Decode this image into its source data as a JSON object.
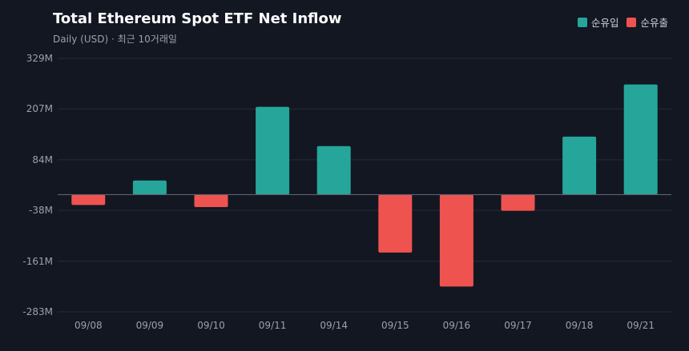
{
  "title": "Total Ethereum Spot ETF Net Inflow",
  "subtitle": "Daily (USD) · 최근 10거래일",
  "legend": [
    {
      "label": "순유입",
      "color": "#26a69a"
    },
    {
      "label": "순유출",
      "color": "#ef5350"
    }
  ],
  "chart_data": {
    "type": "bar",
    "title": "Total Ethereum Spot ETF Net Inflow",
    "subtitle": "Daily (USD) · 최근 10거래일",
    "categories": [
      "09/08",
      "09/09",
      "09/10",
      "09/11",
      "09/14",
      "09/15",
      "09/16",
      "09/17",
      "09/18",
      "09/21"
    ],
    "values": [
      -25,
      34,
      -30,
      212,
      117,
      -140,
      -222,
      -39,
      140,
      266
    ],
    "unit": "M",
    "y_ticks": [
      329,
      207,
      84,
      -38,
      -161,
      -283
    ],
    "y_tick_labels": [
      "329M",
      "207M",
      "84M",
      "-38M",
      "-161M",
      "-283M"
    ],
    "ylim": [
      -283,
      329
    ],
    "positive_color": "#26a69a",
    "negative_color": "#ef5350",
    "grid": true,
    "legend_position": "top-right"
  }
}
